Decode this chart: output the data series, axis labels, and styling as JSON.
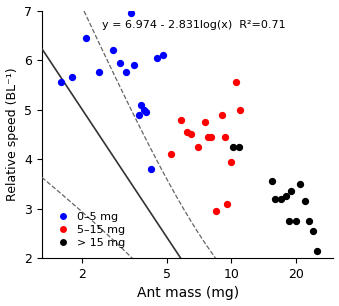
{
  "title": "",
  "xlabel": "Ant mass (mg)",
  "ylabel": "Relative speed (BL⁻¹)",
  "equation": "y = 6.974 - 2.831log(x)  R²=0.71",
  "a": 6.974,
  "b": 2.831,
  "xlim": [
    1.3,
    30
  ],
  "ylim": [
    2.0,
    7.0
  ],
  "yticks": [
    2,
    3,
    4,
    5,
    6,
    7
  ],
  "xticks": [
    2,
    5,
    10,
    20
  ],
  "xticklabels": [
    "2",
    "5",
    "10",
    "20"
  ],
  "blue_points": [
    [
      1.6,
      5.55
    ],
    [
      1.8,
      5.65
    ],
    [
      2.1,
      6.45
    ],
    [
      2.4,
      5.75
    ],
    [
      2.8,
      6.2
    ],
    [
      3.0,
      5.95
    ],
    [
      3.2,
      5.75
    ],
    [
      3.4,
      6.95
    ],
    [
      3.5,
      5.9
    ],
    [
      3.7,
      4.9
    ],
    [
      3.8,
      5.1
    ],
    [
      3.9,
      5.0
    ],
    [
      4.0,
      4.95
    ],
    [
      4.2,
      3.8
    ],
    [
      4.5,
      6.05
    ],
    [
      4.8,
      6.1
    ]
  ],
  "red_points": [
    [
      5.2,
      4.1
    ],
    [
      5.8,
      4.8
    ],
    [
      6.2,
      4.55
    ],
    [
      6.5,
      4.5
    ],
    [
      7.0,
      4.25
    ],
    [
      7.5,
      4.75
    ],
    [
      7.8,
      4.45
    ],
    [
      8.0,
      4.45
    ],
    [
      8.5,
      2.95
    ],
    [
      9.0,
      4.9
    ],
    [
      9.3,
      4.45
    ],
    [
      9.5,
      3.1
    ],
    [
      10.0,
      3.95
    ],
    [
      10.5,
      5.55
    ],
    [
      11.0,
      5.0
    ]
  ],
  "black_points": [
    [
      10.2,
      4.25
    ],
    [
      10.8,
      4.25
    ],
    [
      15.5,
      3.55
    ],
    [
      16.0,
      3.2
    ],
    [
      17.0,
      3.2
    ],
    [
      18.0,
      3.25
    ],
    [
      18.5,
      2.75
    ],
    [
      19.0,
      3.35
    ],
    [
      20.0,
      2.75
    ],
    [
      21.0,
      3.5
    ],
    [
      22.0,
      3.15
    ],
    [
      23.0,
      2.75
    ],
    [
      24.0,
      2.55
    ],
    [
      25.0,
      2.15
    ]
  ],
  "line_color": "#333333",
  "ci_color": "#666666",
  "legend_labels": [
    "0–5 mg",
    "5–15 mg",
    "> 15 mg"
  ],
  "legend_colors": [
    "blue",
    "red",
    "black"
  ]
}
